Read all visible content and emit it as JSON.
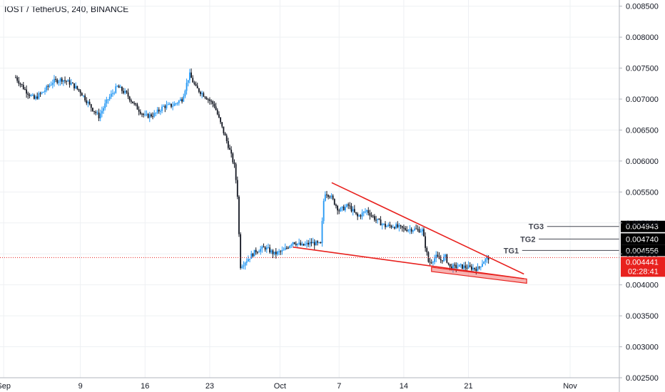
{
  "header": {
    "title": "IOST / TetherUS, 240, BINANCE"
  },
  "colors": {
    "up": "#2196f3",
    "down": "#131722",
    "pattern": "#e8211e",
    "grid": "#eef0f3",
    "price_line": "#e8211e",
    "target_badge": "#000000",
    "last_badge": "#e8211e"
  },
  "chart_data": {
    "type": "candlestick",
    "symbol": "IOST / TetherUS",
    "interval": "240",
    "exchange": "BINANCE",
    "ylim": [
      0.0025,
      0.0086
    ],
    "y_ticks": [
      "0.008500",
      "0.008000",
      "0.007500",
      "0.007000",
      "0.006500",
      "0.006000",
      "0.005500",
      "0.005000",
      "0.004500",
      "0.004000",
      "0.003500",
      "0.003000",
      "0.002500"
    ],
    "x_labels": [
      "Sep",
      "9",
      "16",
      "23",
      "Oct",
      "7",
      "14",
      "21",
      "Nov"
    ],
    "price_path": [
      [
        0.0,
        0.00735
      ],
      [
        1.0,
        0.00715
      ],
      [
        2.0,
        0.007
      ],
      [
        3.0,
        0.00712
      ],
      [
        4.0,
        0.00728
      ],
      [
        5.0,
        0.00732
      ],
      [
        6.0,
        0.00725
      ],
      [
        7.0,
        0.00712
      ],
      [
        8.0,
        0.0069
      ],
      [
        9.0,
        0.00672
      ],
      [
        10.0,
        0.007
      ],
      [
        11.0,
        0.0072
      ],
      [
        12.0,
        0.00708
      ],
      [
        13.0,
        0.00688
      ],
      [
        14.0,
        0.00672
      ],
      [
        15.0,
        0.00675
      ],
      [
        16.0,
        0.00688
      ],
      [
        17.0,
        0.0069
      ],
      [
        18.0,
        0.007
      ],
      [
        18.8,
        0.0074
      ],
      [
        19.5,
        0.00718
      ],
      [
        20.5,
        0.00705
      ],
      [
        21.5,
        0.0069
      ],
      [
        22.3,
        0.00655
      ],
      [
        23.0,
        0.00625
      ],
      [
        23.7,
        0.0059
      ],
      [
        24.0,
        0.00545
      ],
      [
        24.3,
        0.0043
      ],
      [
        25.0,
        0.0044
      ],
      [
        26.0,
        0.00455
      ],
      [
        27.0,
        0.0046
      ],
      [
        28.0,
        0.0045
      ],
      [
        29.0,
        0.00455
      ],
      [
        30.0,
        0.0047
      ],
      [
        31.0,
        0.00463
      ],
      [
        32.0,
        0.00468
      ],
      [
        33.0,
        0.00465
      ],
      [
        33.4,
        0.0055
      ],
      [
        34.0,
        0.00545
      ],
      [
        35.0,
        0.0052
      ],
      [
        36.0,
        0.00528
      ],
      [
        37.0,
        0.0051
      ],
      [
        38.0,
        0.0052
      ],
      [
        39.0,
        0.00505
      ],
      [
        40.0,
        0.00495
      ],
      [
        41.0,
        0.00495
      ],
      [
        42.0,
        0.0049
      ],
      [
        43.0,
        0.0049
      ],
      [
        44.0,
        0.00488
      ],
      [
        44.7,
        0.00435
      ],
      [
        45.5,
        0.00445
      ],
      [
        46.0,
        0.0044
      ],
      [
        46.5,
        0.00445
      ],
      [
        47.0,
        0.00428
      ],
      [
        48.0,
        0.0043
      ],
      [
        49.0,
        0.00428
      ],
      [
        50.0,
        0.00426
      ],
      [
        50.6,
        0.00438
      ],
      [
        51.2,
        0.00444
      ]
    ],
    "pattern_lines": [
      {
        "name": "upper-trendline",
        "x": [
          34.2,
          55.0
        ],
        "y": [
          0.00565,
          0.004175
        ]
      },
      {
        "name": "lower-trendline",
        "x": [
          30.0,
          55.0
        ],
        "y": [
          0.00461,
          0.0041
        ]
      },
      {
        "name": "support-zone",
        "x": [
          45.0,
          55.3
        ],
        "y": [
          0.00425,
          0.00406
        ]
      }
    ],
    "target_lines": [
      {
        "label": "TG3",
        "value": "0.004943",
        "y": 0.004943,
        "x_start": 55.5
      },
      {
        "label": "TG2",
        "value": "0.004740",
        "y": 0.00474,
        "x_start": 54.6
      },
      {
        "label": "TG1",
        "value": "0.004556",
        "y": 0.004556,
        "x_start": 52.8
      }
    ],
    "last_price": {
      "value": "0.004441",
      "y": 0.004441,
      "countdown": "02:28:41"
    },
    "grid": true
  }
}
